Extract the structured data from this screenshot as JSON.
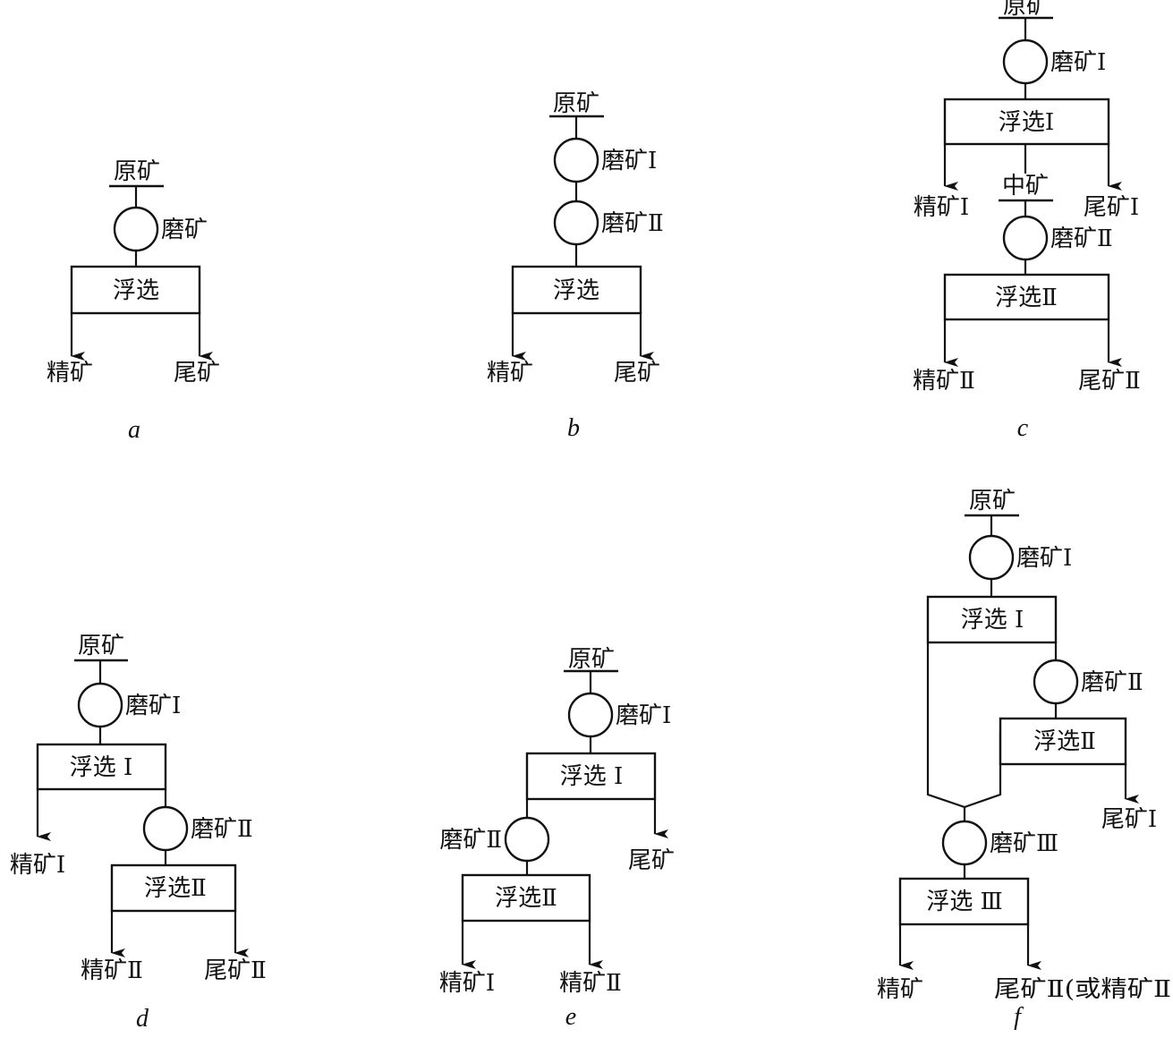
{
  "diagrams": {
    "a": {
      "caption": "a",
      "feed": "原矿",
      "mill": "磨矿",
      "flot": "浮选",
      "out_left": "精矿",
      "out_right": "尾矿"
    },
    "b": {
      "caption": "b",
      "feed": "原矿",
      "mill1": "磨矿Ⅰ",
      "mill2": "磨矿Ⅱ",
      "flot": "浮选",
      "out_left": "精矿",
      "out_right": "尾矿"
    },
    "c": {
      "caption": "c",
      "feed": "原矿",
      "mill1": "磨矿Ⅰ",
      "flot1": "浮选Ⅰ",
      "out1_left": "精矿Ⅰ",
      "out1_right": "尾矿Ⅰ",
      "middling": "中矿",
      "mill2": "磨矿Ⅱ",
      "flot2": "浮选Ⅱ",
      "out2_left": "精矿Ⅱ",
      "out2_right": "尾矿Ⅱ"
    },
    "d": {
      "caption": "d",
      "feed": "原矿",
      "mill1": "磨矿Ⅰ",
      "flot1": "浮选 Ⅰ",
      "out1_left": "精矿Ⅰ",
      "mill2": "磨矿Ⅱ",
      "flot2": "浮选Ⅱ",
      "out2_left": "精矿Ⅱ",
      "out2_right": "尾矿Ⅱ"
    },
    "e": {
      "caption": "e",
      "feed": "原矿",
      "mill1": "磨矿Ⅰ",
      "flot1": "浮选 Ⅰ",
      "mill2": "磨矿Ⅱ",
      "out1_right": "尾矿",
      "flot2": "浮选Ⅱ",
      "out2_left": "精矿Ⅰ",
      "out2_right": "精矿Ⅱ"
    },
    "f": {
      "caption": "f",
      "feed": "原矿",
      "mill1": "磨矿Ⅰ",
      "flot1": "浮选 Ⅰ",
      "mill2": "磨矿Ⅱ",
      "flot2": "浮选Ⅱ",
      "out_tail1": "尾矿Ⅰ",
      "mill3": "磨矿Ⅲ",
      "flot3": "浮选 Ⅲ",
      "out3_left": "精矿",
      "out3_right": "尾矿Ⅱ(或精矿Ⅱ"
    }
  }
}
